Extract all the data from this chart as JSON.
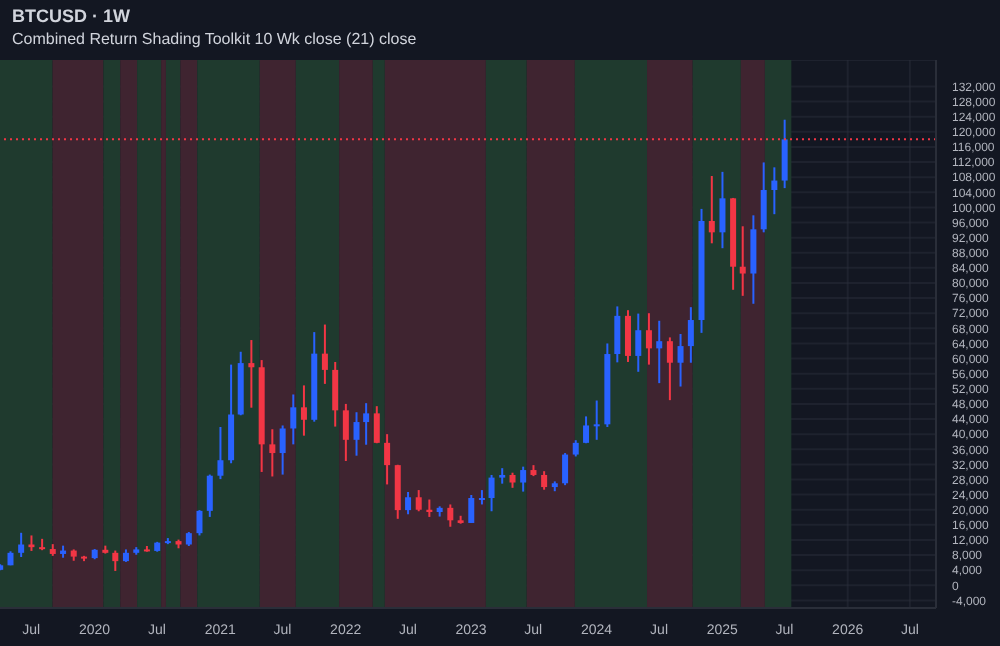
{
  "chart_data": {
    "type": "candlestick",
    "title": "BTCUSD · 1W",
    "subtitle": "Combined Return Shading Toolkit 10 Wk close (21) close",
    "x": [
      "2019-04",
      "2019-05",
      "2019-06",
      "2019-07",
      "2019-08",
      "2019-09",
      "2019-10",
      "2019-11",
      "2019-12",
      "2020-01",
      "2020-02",
      "2020-03",
      "2020-04",
      "2020-05",
      "2020-06",
      "2020-07",
      "2020-08",
      "2020-09",
      "2020-10",
      "2020-11",
      "2020-12",
      "2021-01",
      "2021-02",
      "2021-03",
      "2021-04",
      "2021-05",
      "2021-06",
      "2021-07",
      "2021-08",
      "2021-09",
      "2021-10",
      "2021-11",
      "2021-12",
      "2022-01",
      "2022-02",
      "2022-03",
      "2022-04",
      "2022-05",
      "2022-06",
      "2022-07",
      "2022-08",
      "2022-09",
      "2022-10",
      "2022-11",
      "2022-12",
      "2023-01",
      "2023-02",
      "2023-03",
      "2023-04",
      "2023-05",
      "2023-06",
      "2023-07",
      "2023-08",
      "2023-09",
      "2023-10",
      "2023-11",
      "2023-12",
      "2024-01",
      "2024-02",
      "2024-03",
      "2024-04",
      "2024-05",
      "2024-06",
      "2024-07",
      "2024-08",
      "2024-09",
      "2024-10",
      "2024-11",
      "2024-12",
      "2025-01",
      "2025-02",
      "2025-03",
      "2025-04",
      "2025-05",
      "2025-06",
      "2025-07"
    ],
    "ohlc": [
      [
        4100,
        5600,
        4000,
        5300
      ],
      [
        5300,
        9000,
        5300,
        8600
      ],
      [
        8600,
        13900,
        7500,
        10800
      ],
      [
        10800,
        13200,
        9100,
        10100
      ],
      [
        10100,
        12300,
        9300,
        9600
      ],
      [
        9600,
        10900,
        7800,
        8300
      ],
      [
        8300,
        10500,
        7300,
        9200
      ],
      [
        9200,
        9500,
        6500,
        7600
      ],
      [
        7600,
        7800,
        6400,
        7200
      ],
      [
        7200,
        9600,
        6900,
        9400
      ],
      [
        9400,
        10500,
        8400,
        8600
      ],
      [
        8600,
        9200,
        3800,
        6400
      ],
      [
        6400,
        9500,
        6200,
        8600
      ],
      [
        8600,
        10100,
        8100,
        9500
      ],
      [
        9500,
        10400,
        8900,
        9100
      ],
      [
        9100,
        11500,
        8900,
        11300
      ],
      [
        11300,
        12500,
        10900,
        11700
      ],
      [
        11700,
        12100,
        9800,
        10800
      ],
      [
        10800,
        14100,
        10400,
        13800
      ],
      [
        13800,
        19900,
        13200,
        19700
      ],
      [
        19700,
        29300,
        18100,
        29000
      ],
      [
        29000,
        41900,
        28100,
        33100
      ],
      [
        33100,
        58400,
        32300,
        45200
      ],
      [
        45200,
        61800,
        45000,
        58800
      ],
      [
        58800,
        64900,
        47000,
        57700
      ],
      [
        57700,
        59600,
        30000,
        37300
      ],
      [
        37300,
        41300,
        28800,
        35000
      ],
      [
        35000,
        42300,
        29300,
        41500
      ],
      [
        41500,
        50500,
        37300,
        47100
      ],
      [
        47100,
        52900,
        39600,
        43800
      ],
      [
        43800,
        67000,
        43300,
        61300
      ],
      [
        61300,
        69000,
        53300,
        57000
      ],
      [
        57000,
        59100,
        42000,
        46300
      ],
      [
        46300,
        48000,
        32900,
        38500
      ],
      [
        38500,
        45800,
        34300,
        43200
      ],
      [
        43200,
        48200,
        37200,
        45500
      ],
      [
        45500,
        47400,
        37600,
        37700
      ],
      [
        37700,
        40000,
        26700,
        31800
      ],
      [
        31800,
        31900,
        17600,
        19900
      ],
      [
        19900,
        24700,
        18800,
        23300
      ],
      [
        23300,
        25200,
        19600,
        20000
      ],
      [
        20000,
        22700,
        18100,
        19400
      ],
      [
        19400,
        20900,
        18200,
        20500
      ],
      [
        20500,
        21400,
        15500,
        17200
      ],
      [
        17200,
        18400,
        16300,
        16500
      ],
      [
        16500,
        23900,
        16500,
        23100
      ],
      [
        23100,
        25200,
        21400,
        23100
      ],
      [
        23100,
        29200,
        19600,
        28500
      ],
      [
        28500,
        31000,
        26900,
        29200
      ],
      [
        29200,
        29800,
        25800,
        27200
      ],
      [
        27200,
        31400,
        24800,
        30500
      ],
      [
        30500,
        31800,
        28900,
        29200
      ],
      [
        29200,
        30200,
        25300,
        26000
      ],
      [
        26000,
        27500,
        24900,
        27000
      ],
      [
        27000,
        35000,
        26500,
        34600
      ],
      [
        34600,
        38400,
        34100,
        37700
      ],
      [
        37700,
        44700,
        37600,
        42300
      ],
      [
        42300,
        48900,
        38500,
        42600
      ],
      [
        42600,
        64000,
        41900,
        61200
      ],
      [
        61200,
        73800,
        59000,
        71300
      ],
      [
        71300,
        72800,
        59100,
        60700
      ],
      [
        60700,
        71900,
        56500,
        67500
      ],
      [
        67500,
        72000,
        58400,
        62700
      ],
      [
        62700,
        70000,
        53500,
        64600
      ],
      [
        64600,
        65600,
        49000,
        58900
      ],
      [
        58900,
        66500,
        52600,
        63300
      ],
      [
        63300,
        73600,
        58900,
        70200
      ],
      [
        70200,
        99600,
        66800,
        96400
      ],
      [
        96400,
        108300,
        90500,
        93400
      ],
      [
        93400,
        109400,
        89200,
        102400
      ],
      [
        102400,
        102500,
        78200,
        84300
      ],
      [
        84300,
        95000,
        76600,
        82500
      ],
      [
        82500,
        97900,
        74500,
        94200
      ],
      [
        94200,
        111900,
        93400,
        104600
      ],
      [
        104600,
        110600,
        98200,
        107100
      ],
      [
        107100,
        123200,
        105100,
        118000
      ]
    ],
    "colors": [
      "#2962ff",
      "#2962ff",
      "#2962ff",
      "#f23645",
      "#f23645",
      "#f23645",
      "#2962ff",
      "#f23645",
      "#f23645",
      "#2962ff",
      "#f23645",
      "#f23645",
      "#2962ff",
      "#2962ff",
      "#f23645",
      "#2962ff",
      "#2962ff",
      "#f23645",
      "#2962ff",
      "#2962ff",
      "#2962ff",
      "#2962ff",
      "#2962ff",
      "#2962ff",
      "#f23645",
      "#f23645",
      "#f23645",
      "#2962ff",
      "#2962ff",
      "#f23645",
      "#2962ff",
      "#f23645",
      "#f23645",
      "#f23645",
      "#2962ff",
      "#2962ff",
      "#f23645",
      "#f23645",
      "#f23645",
      "#2962ff",
      "#f23645",
      "#f23645",
      "#2962ff",
      "#f23645",
      "#f23645",
      "#2962ff",
      "#2962ff",
      "#2962ff",
      "#2962ff",
      "#f23645",
      "#2962ff",
      "#f23645",
      "#f23645",
      "#2962ff",
      "#2962ff",
      "#2962ff",
      "#2962ff",
      "#2962ff",
      "#2962ff",
      "#2962ff",
      "#f23645",
      "#2962ff",
      "#f23645",
      "#2962ff",
      "#f23645",
      "#2962ff",
      "#2962ff",
      "#2962ff",
      "#f23645",
      "#2962ff",
      "#f23645",
      "#f23645",
      "#2962ff",
      "#2962ff",
      "#2962ff",
      "#2962ff"
    ],
    "xlim": [
      "2019-04-01",
      "2026-09-15"
    ],
    "xticks": [
      {
        "value": "2019-07-01",
        "label": "Jul"
      },
      {
        "value": "2020-01-01",
        "label": "2020"
      },
      {
        "value": "2020-07-01",
        "label": "Jul"
      },
      {
        "value": "2021-01-01",
        "label": "2021"
      },
      {
        "value": "2021-07-01",
        "label": "Jul"
      },
      {
        "value": "2022-01-01",
        "label": "2022"
      },
      {
        "value": "2022-07-01",
        "label": "Jul"
      },
      {
        "value": "2023-01-01",
        "label": "2023"
      },
      {
        "value": "2023-07-01",
        "label": "Jul"
      },
      {
        "value": "2024-01-01",
        "label": "2024"
      },
      {
        "value": "2024-07-01",
        "label": "Jul"
      },
      {
        "value": "2025-01-01",
        "label": "2025"
      },
      {
        "value": "2025-07-01",
        "label": "Jul"
      },
      {
        "value": "2026-01-01",
        "label": "2026"
      },
      {
        "value": "2026-07-01",
        "label": "Jul"
      }
    ],
    "ylim": [
      -6000,
      139000
    ],
    "yticks": [
      {
        "value": -4000,
        "label": "-4,000"
      },
      {
        "value": 0,
        "label": "0"
      },
      {
        "value": 4000,
        "label": "4,000"
      },
      {
        "value": 8000,
        "label": "8,000"
      },
      {
        "value": 12000,
        "label": "12,000"
      },
      {
        "value": 16000,
        "label": "16,000"
      },
      {
        "value": 20000,
        "label": "20,000"
      },
      {
        "value": 24000,
        "label": "24,000"
      },
      {
        "value": 28000,
        "label": "28,000"
      },
      {
        "value": 32000,
        "label": "32,000"
      },
      {
        "value": 36000,
        "label": "36,000"
      },
      {
        "value": 40000,
        "label": "40,000"
      },
      {
        "value": 44000,
        "label": "44,000"
      },
      {
        "value": 48000,
        "label": "48,000"
      },
      {
        "value": 52000,
        "label": "52,000"
      },
      {
        "value": 56000,
        "label": "56,000"
      },
      {
        "value": 60000,
        "label": "60,000"
      },
      {
        "value": 64000,
        "label": "64,000"
      },
      {
        "value": 68000,
        "label": "68,000"
      },
      {
        "value": 72000,
        "label": "72,000"
      },
      {
        "value": 76000,
        "label": "76,000"
      },
      {
        "value": 80000,
        "label": "80,000"
      },
      {
        "value": 84000,
        "label": "84,000"
      },
      {
        "value": 88000,
        "label": "88,000"
      },
      {
        "value": 92000,
        "label": "92,000"
      },
      {
        "value": 96000,
        "label": "96,000"
      },
      {
        "value": 100000,
        "label": "100,000"
      },
      {
        "value": 104000,
        "label": "104,000"
      },
      {
        "value": 108000,
        "label": "108,000"
      },
      {
        "value": 112000,
        "label": "112,000"
      },
      {
        "value": 116000,
        "label": "116,000"
      },
      {
        "value": 120000,
        "label": "120,000"
      },
      {
        "value": 124000,
        "label": "124,000"
      },
      {
        "value": 128000,
        "label": "128,000"
      },
      {
        "value": 132000,
        "label": "132,000"
      }
    ],
    "grid": true,
    "ref_lines": [
      {
        "axis": "y",
        "value": 118000,
        "color": "#f23645",
        "line_style": "dotted"
      }
    ],
    "bands": [
      {
        "axis": "x",
        "from": "2019-04-01",
        "to": "2019-09-01",
        "color": "#1f3a2e"
      },
      {
        "axis": "x",
        "from": "2019-09-01",
        "to": "2020-01-27",
        "color": "#3f2430"
      },
      {
        "axis": "x",
        "from": "2020-01-27",
        "to": "2020-03-16",
        "color": "#1f3a2e"
      },
      {
        "axis": "x",
        "from": "2020-03-16",
        "to": "2020-05-04",
        "color": "#3f2430"
      },
      {
        "axis": "x",
        "from": "2020-05-04",
        "to": "2020-07-13",
        "color": "#1f3a2e"
      },
      {
        "axis": "x",
        "from": "2020-07-13",
        "to": "2020-07-27",
        "color": "#3f2430"
      },
      {
        "axis": "x",
        "from": "2020-07-27",
        "to": "2020-09-07",
        "color": "#1f3a2e"
      },
      {
        "axis": "x",
        "from": "2020-09-07",
        "to": "2020-10-26",
        "color": "#3f2430"
      },
      {
        "axis": "x",
        "from": "2020-10-26",
        "to": "2021-04-26",
        "color": "#1f3a2e"
      },
      {
        "axis": "x",
        "from": "2021-04-26",
        "to": "2021-08-09",
        "color": "#3f2430"
      },
      {
        "axis": "x",
        "from": "2021-08-09",
        "to": "2021-12-13",
        "color": "#1f3a2e"
      },
      {
        "axis": "x",
        "from": "2021-12-13",
        "to": "2022-03-21",
        "color": "#3f2430"
      },
      {
        "axis": "x",
        "from": "2022-03-21",
        "to": "2022-04-25",
        "color": "#1f3a2e"
      },
      {
        "axis": "x",
        "from": "2022-04-25",
        "to": "2023-02-13",
        "color": "#3f2430"
      },
      {
        "axis": "x",
        "from": "2023-02-13",
        "to": "2023-06-12",
        "color": "#1f3a2e"
      },
      {
        "axis": "x",
        "from": "2023-06-12",
        "to": "2023-10-30",
        "color": "#3f2430"
      },
      {
        "axis": "x",
        "from": "2023-10-30",
        "to": "2024-05-27",
        "color": "#1f3a2e"
      },
      {
        "axis": "x",
        "from": "2024-05-27",
        "to": "2024-10-07",
        "color": "#3f2430"
      },
      {
        "axis": "x",
        "from": "2024-10-07",
        "to": "2025-02-24",
        "color": "#1f3a2e"
      },
      {
        "axis": "x",
        "from": "2025-02-24",
        "to": "2025-05-05",
        "color": "#3f2430"
      },
      {
        "axis": "x",
        "from": "2025-05-05",
        "to": "2025-07-21",
        "color": "#1f3a2e"
      }
    ]
  }
}
